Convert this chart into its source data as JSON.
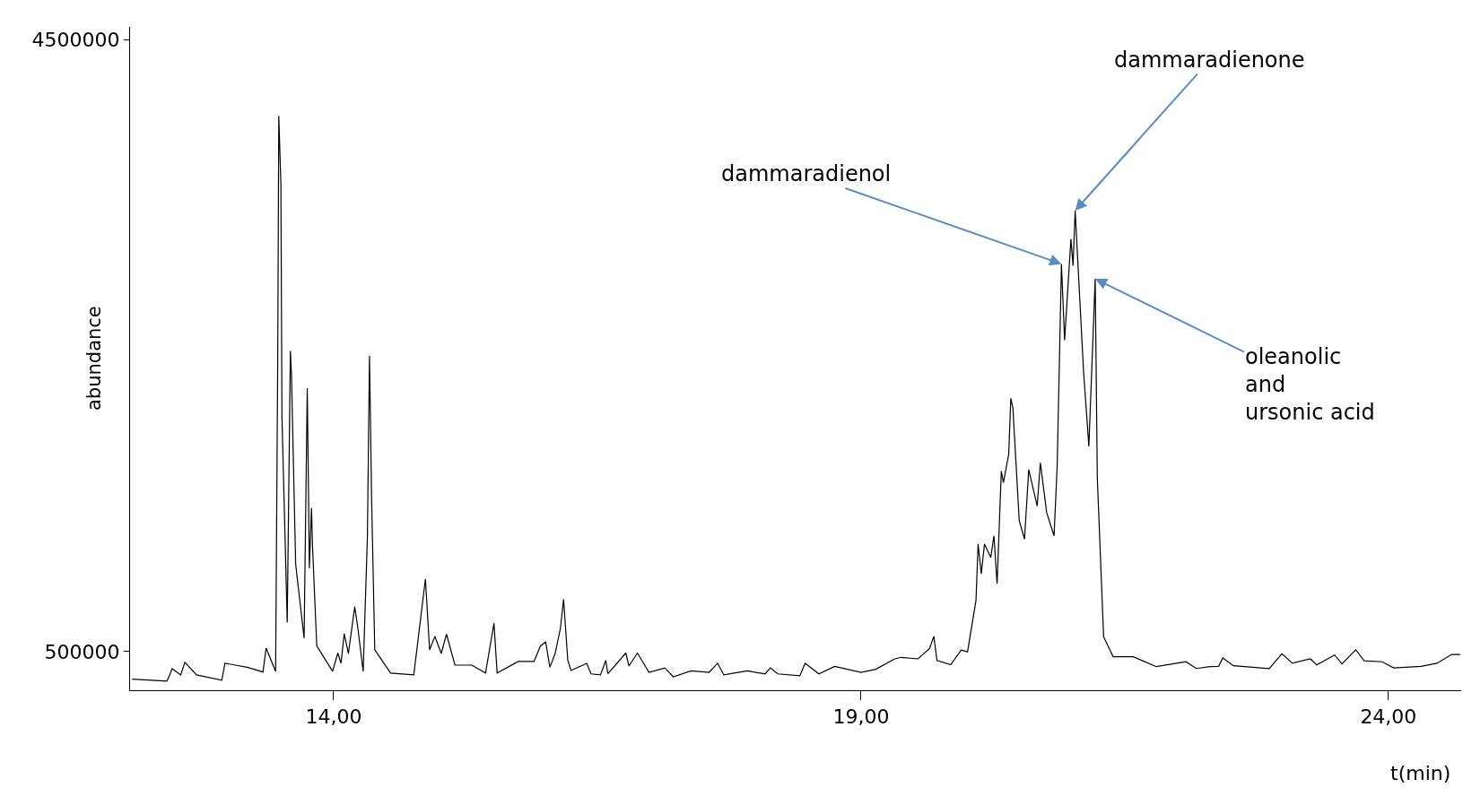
{
  "chart_data": {
    "type": "line",
    "xlabel": "t(min)",
    "ylabel": "abundance",
    "x": [
      12.09,
      12.42,
      12.47,
      12.55,
      12.59,
      12.7,
      12.94,
      12.97,
      13.07,
      13.18,
      13.33,
      13.36,
      13.45,
      13.47,
      13.48,
      13.5,
      13.51,
      13.56,
      13.59,
      13.6,
      13.64,
      13.72,
      13.75,
      13.77,
      13.79,
      13.8,
      13.84,
      13.99,
      14.04,
      14.07,
      14.1,
      14.14,
      14.2,
      14.23,
      14.28,
      14.32,
      14.34,
      14.36,
      14.39,
      14.54,
      14.76,
      14.87,
      14.91,
      14.96,
      15.02,
      15.07,
      15.15,
      15.31,
      15.44,
      15.52,
      15.55,
      15.75,
      15.9,
      15.96,
      16.01,
      16.05,
      16.1,
      16.15,
      16.18,
      16.22,
      16.25,
      16.4,
      16.44,
      16.53,
      16.58,
      16.6,
      16.77,
      16.8,
      16.88,
      16.99,
      17.14,
      17.22,
      17.39,
      17.56,
      17.64,
      17.7,
      17.92,
      18.09,
      18.14,
      18.21,
      18.42,
      18.47,
      18.6,
      18.75,
      19.0,
      19.14,
      19.32,
      19.38,
      19.54,
      19.65,
      19.69,
      19.72,
      19.85,
      19.95,
      20.01,
      20.09,
      20.11,
      20.14,
      20.17,
      20.23,
      20.26,
      20.29,
      20.33,
      20.35,
      20.4,
      20.42,
      20.44,
      20.5,
      20.55,
      20.59,
      20.67,
      20.7,
      20.76,
      20.83,
      20.86,
      20.9,
      20.93,
      20.99,
      21.01,
      21.03,
      21.11,
      21.16,
      21.22,
      21.24,
      21.3,
      21.39,
      21.58,
      21.8,
      22.08,
      22.18,
      22.31,
      22.39,
      22.43,
      22.53,
      22.87,
      22.99,
      23.09,
      23.26,
      23.32,
      23.49,
      23.56,
      23.69,
      23.77,
      23.94,
      24.05,
      24.31,
      24.46,
      24.6,
      24.68
    ],
    "series": [
      {
        "color": "#000000",
        "values": [
          321000,
          307000,
          389000,
          348000,
          430000,
          348000,
          313000,
          424000,
          412000,
          398000,
          367000,
          523000,
          371000,
          2418000,
          4000000,
          3551000,
          2037000,
          690000,
          2464000,
          2316000,
          1071000,
          588000,
          2222000,
          1045000,
          1439000,
          1185000,
          537000,
          372000,
          491000,
          424000,
          618000,
          488000,
          793000,
          652000,
          371000,
          1250000,
          2433000,
          1503000,
          512000,
          360000,
          348000,
          974000,
          512000,
          600000,
          488000,
          614000,
          412000,
          412000,
          360000,
          685000,
          360000,
          436000,
          436000,
          537000,
          564000,
          398000,
          488000,
          652000,
          842000,
          443000,
          377000,
          424000,
          355000,
          348000,
          443000,
          355000,
          491000,
          406000,
          491000,
          365000,
          394000,
          336000,
          375000,
          365000,
          424000,
          348000,
          375000,
          355000,
          394000,
          355000,
          342000,
          424000,
          355000,
          404000,
          365000,
          385000,
          453000,
          463000,
          453000,
          521000,
          600000,
          443000,
          414000,
          510000,
          499000,
          836000,
          1203000,
          1008000,
          1203000,
          1116000,
          1257000,
          943000,
          1680000,
          1604000,
          1789000,
          2155000,
          2090000,
          1355000,
          1235000,
          1690000,
          1452000,
          1734000,
          1408000,
          1257000,
          1722000,
          3033000,
          2535000,
          3196000,
          3022000,
          3381000,
          2329000,
          1842000,
          2936000,
          1636000,
          597000,
          467000,
          467000,
          402000,
          434000,
          390000,
          402000,
          404000,
          459000,
          408000,
          389000,
          486000,
          424000,
          453000,
          414000,
          478000,
          420000,
          512000,
          440000,
          434000,
          394000,
          404000,
          424000,
          482000,
          482000
        ]
      }
    ],
    "xlim": [
      12.07,
      24.69
    ],
    "ylim": [
      248000,
      4582000
    ],
    "xticks": [
      {
        "value": 14,
        "label": "14,00"
      },
      {
        "value": 19,
        "label": "19,00"
      },
      {
        "value": 24,
        "label": "24,00"
      }
    ],
    "yticks": [
      500000,
      4500000
    ],
    "annotations": [
      {
        "text": "dammaradienol",
        "x": 20.9,
        "y": 3033000
      },
      {
        "text": "dammaradienone",
        "x": 21.03,
        "y": 3381000
      },
      {
        "text": "oleanolic\nand\nursonic acid",
        "x": 21.22,
        "y": 2936000
      }
    ],
    "line_style": "solid",
    "marker": "none"
  }
}
